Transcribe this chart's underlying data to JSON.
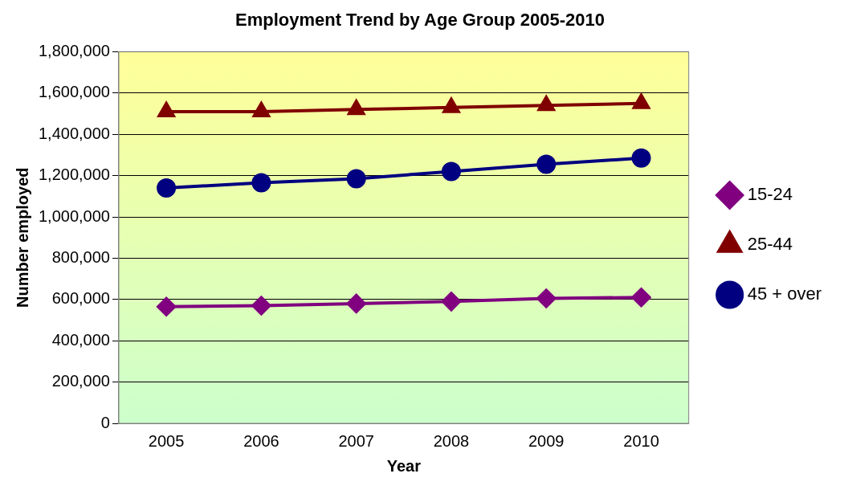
{
  "chart_data": {
    "type": "line",
    "title": "Employment Trend by Age Group 2005-2010",
    "xlabel": "Year",
    "ylabel": "Number employed",
    "categories": [
      "2005",
      "2006",
      "2007",
      "2008",
      "2009",
      "2010"
    ],
    "series": [
      {
        "name": "15-24",
        "color": "#800080",
        "marker": "diamond",
        "values": [
          565000,
          570000,
          580000,
          590000,
          605000,
          610000
        ]
      },
      {
        "name": "25-44",
        "color": "#800000",
        "marker": "triangle",
        "values": [
          1510000,
          1510000,
          1520000,
          1530000,
          1540000,
          1550000
        ]
      },
      {
        "name": "45 + over",
        "color": "#000080",
        "marker": "circle",
        "values": [
          1140000,
          1165000,
          1185000,
          1220000,
          1255000,
          1285000
        ]
      }
    ],
    "ylim": [
      0,
      1800000
    ],
    "yticks": [
      0,
      {
        "value": 200000,
        "label": "200,000"
      },
      {
        "value": 400000,
        "label": "400,000"
      },
      {
        "value": 600000,
        "label": "600,000"
      },
      {
        "value": 800000,
        "label": "800,000"
      },
      {
        "value": 1000000,
        "label": "1,000,000"
      },
      {
        "value": 1200000,
        "label": "1,200,000"
      },
      {
        "value": 1400000,
        "label": "1,400,000"
      },
      {
        "value": 1600000,
        "label": "1,600,000"
      },
      {
        "value": 1800000,
        "label": "1,800,000"
      }
    ],
    "grid": "y",
    "legend": "right",
    "line_style": "solid"
  }
}
